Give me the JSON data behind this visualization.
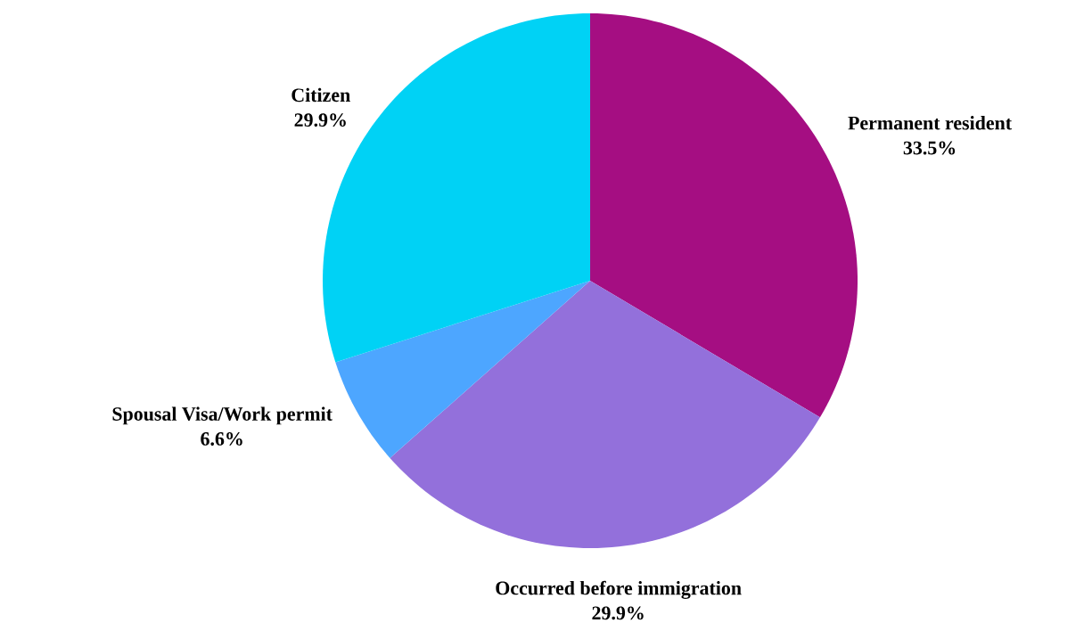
{
  "chart_data": {
    "type": "pie",
    "categories": [
      "Permanent resident",
      "Occurred before immigration",
      "Spousal Visa/Work permit",
      "Citizen"
    ],
    "values": [
      33.5,
      29.9,
      6.6,
      29.9
    ],
    "colors": [
      "#a50e82",
      "#9370db",
      "#4da6ff",
      "#00d2f5"
    ],
    "value_labels": [
      "33.5%",
      "29.9%",
      "6.6%",
      "29.9%"
    ]
  }
}
